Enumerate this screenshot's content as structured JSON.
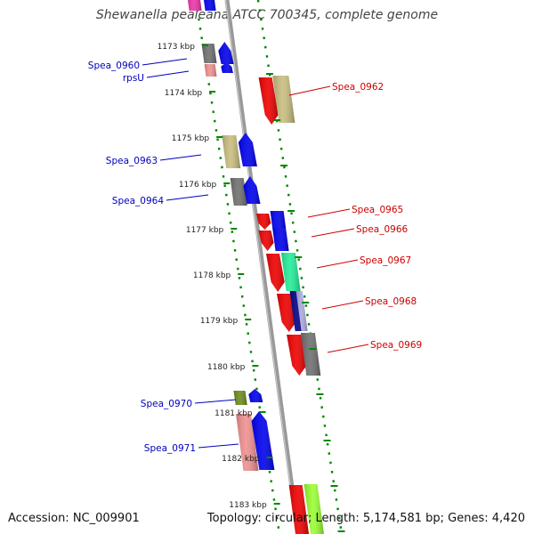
{
  "title": "Shewanella pealeana ATCC 700345, complete genome",
  "footer": {
    "accession": "Accession: NC_009901",
    "topology": "Topology: circular; Length: 5,174,581 bp; Genes: 4,420"
  },
  "colors": {
    "forward_label": "#0000bb",
    "reverse_label": "#cc0000",
    "backbone": "#999999",
    "ruler": "#008800"
  },
  "ruler_ticks": [
    "1173 kbp",
    "1174 kbp",
    "1175 kbp",
    "1176 kbp",
    "1177 kbp",
    "1178 kbp",
    "1179 kbp",
    "1180 kbp",
    "1181 kbp",
    "1182 kbp",
    "1183 kbp"
  ],
  "gene_labels": {
    "left": [
      "Spea_0960",
      "rpsU",
      "Spea_0963",
      "Spea_0964",
      "Spea_0970",
      "Spea_0971"
    ],
    "right": [
      "Spea_0962",
      "Spea_0965",
      "Spea_0966",
      "Spea_0967",
      "Spea_0968",
      "Spea_0969"
    ]
  },
  "gene_colors": {
    "red": "#ee0000",
    "blue": "#0000ee",
    "grey": "#707070",
    "khaki": "#c8be80",
    "pink": "#f09090",
    "magenta": "#ee33aa",
    "green": "#22ee99",
    "navy": "#000088",
    "olive": "#6e8c1e",
    "lime": "#99ff33",
    "lavender": "#aaaadd"
  }
}
